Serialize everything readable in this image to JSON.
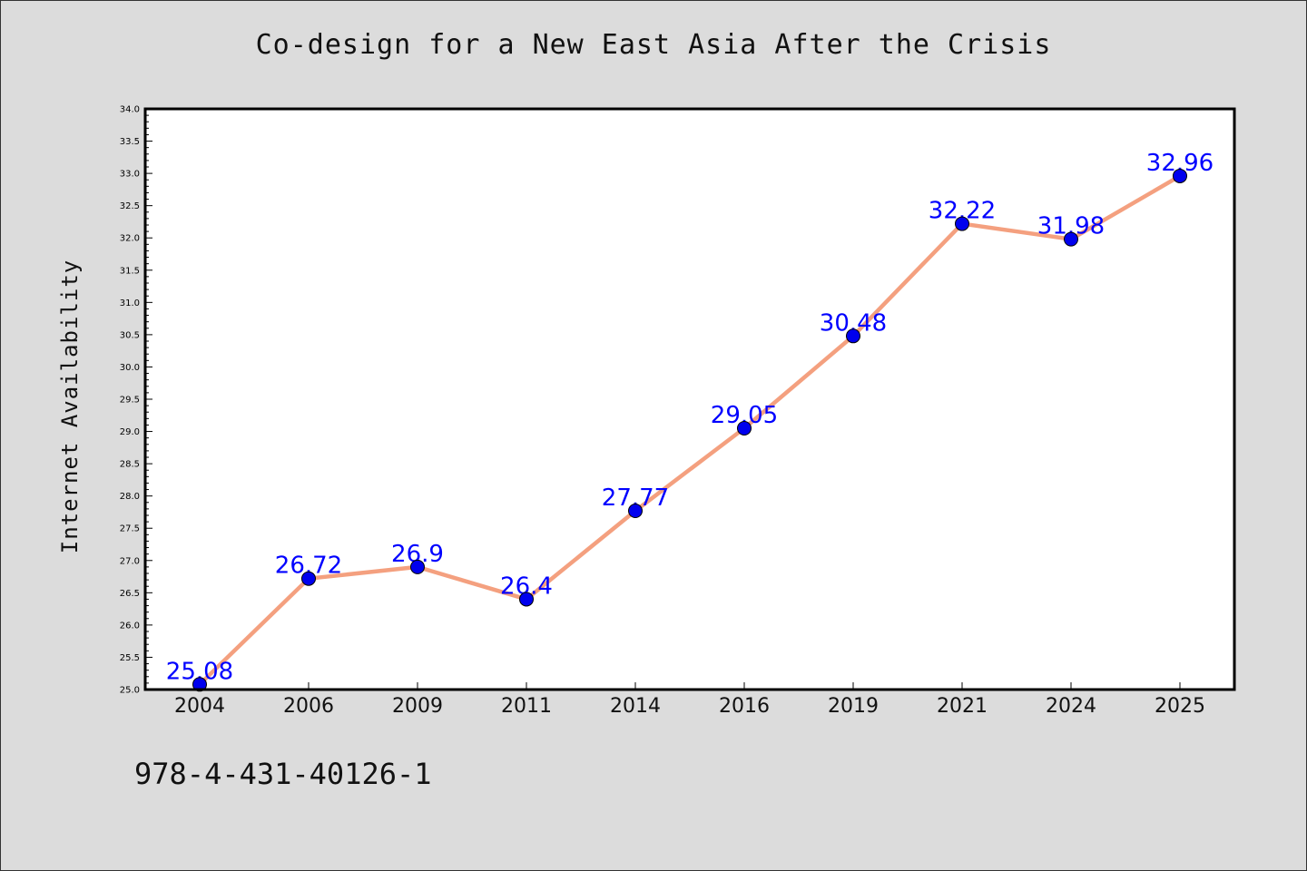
{
  "chart_data": {
    "type": "line",
    "title": "Co-design for a New East Asia After the Crisis",
    "ylabel": "Internet Availability",
    "xlabel": "",
    "categories": [
      "2004",
      "2006",
      "2009",
      "2011",
      "2014",
      "2016",
      "2019",
      "2021",
      "2024",
      "2025"
    ],
    "values": [
      25.08,
      26.72,
      26.9,
      26.4,
      27.77,
      29.05,
      30.48,
      32.22,
      31.98,
      32.96
    ],
    "data_labels": [
      "25.08",
      "26.72",
      "26.9",
      "26.4",
      "27.77",
      "29.05",
      "30.48",
      "32.22",
      "31.98",
      "32.96"
    ],
    "ylim": [
      25.0,
      34.0
    ],
    "y_ticks": [
      "25.0",
      "25.5",
      "26.0",
      "26.5",
      "27.0",
      "27.5",
      "28.0",
      "28.5",
      "29.0",
      "29.5",
      "30.0",
      "30.5",
      "31.0",
      "31.5",
      "32.0",
      "32.5",
      "33.0",
      "33.5",
      "34.0"
    ],
    "grid": false,
    "line_color": "#f4a07f",
    "marker_color": "#0000ee",
    "label_color": "#0000ff"
  },
  "footer": {
    "isbn": "978-4-431-40126-1"
  }
}
